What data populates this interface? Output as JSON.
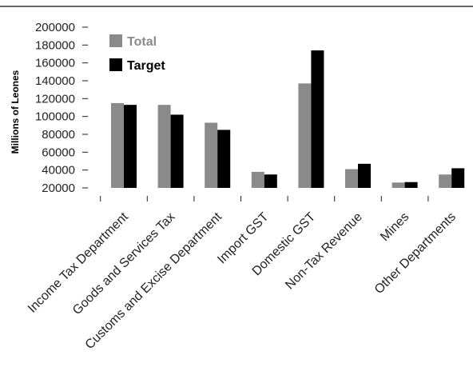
{
  "chart_data": {
    "type": "bar",
    "title": "",
    "xlabel": "",
    "ylabel": "Millions of Leones",
    "ylim": [
      20000,
      200000
    ],
    "yticks": [
      20000,
      40000,
      60000,
      80000,
      100000,
      120000,
      140000,
      160000,
      180000,
      200000
    ],
    "ytick_labels": [
      "20000",
      "40000",
      "60000",
      "80000",
      "100000",
      "120000",
      "140000",
      "160000",
      "180000",
      "200000"
    ],
    "categories": [
      "Income Tax Department",
      "Goods and Services Tax",
      "Customs and Excise Department",
      "Import GST",
      "Domestic GST",
      "Non-Tax Revenue",
      "Mines",
      "Other Departments"
    ],
    "series": [
      {
        "name": "Total",
        "color": "#8a8a8a",
        "values": [
          115000,
          113000,
          93000,
          38000,
          137000,
          41000,
          26000,
          35000
        ]
      },
      {
        "name": "Target",
        "color": "#000000",
        "values": [
          113000,
          102000,
          85000,
          35000,
          174000,
          47000,
          26500,
          42000
        ]
      }
    ],
    "grid": false,
    "legend_position": "top-left"
  }
}
